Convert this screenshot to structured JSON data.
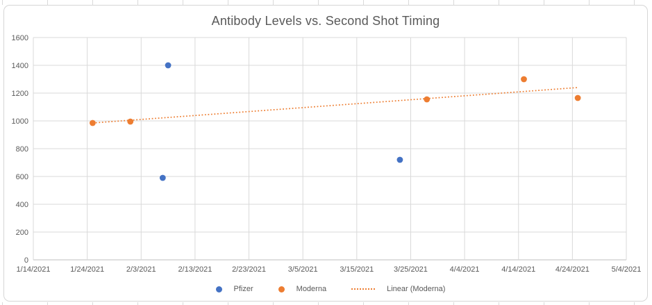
{
  "chart": {
    "title": "Antibody Levels vs. Second Shot Timing",
    "legend": [
      {
        "label": "Pfizer",
        "marker": "dot",
        "color": "#4472c4"
      },
      {
        "label": "Moderna",
        "marker": "dot",
        "color": "#ed7d31"
      },
      {
        "label": "Linear (Moderna)",
        "marker": "dotted-line",
        "color": "#ed7d31"
      }
    ]
  },
  "chart_data": {
    "type": "scatter",
    "title": "Antibody Levels vs. Second Shot Timing",
    "xlabel": "",
    "ylabel": "",
    "grid": true,
    "legend_position": "bottom",
    "x_axis": {
      "start_date": "1/14/2021",
      "end_date": "5/4/2021",
      "tick_interval_days": 10,
      "tick_labels": [
        "1/14/2021",
        "1/24/2021",
        "2/3/2021",
        "2/13/2021",
        "2/23/2021",
        "3/5/2021",
        "3/15/2021",
        "3/25/2021",
        "4/4/2021",
        "4/14/2021",
        "4/24/2021",
        "5/4/2021"
      ]
    },
    "y_axis": {
      "min": 0,
      "max": 1600,
      "tick_step": 200,
      "tick_labels": [
        "0",
        "200",
        "400",
        "600",
        "800",
        "1000",
        "1200",
        "1400",
        "1600"
      ]
    },
    "series": [
      {
        "name": "Pfizer",
        "color": "#4472c4",
        "points": [
          {
            "date": "2/7/2021",
            "value": 590
          },
          {
            "date": "2/8/2021",
            "value": 1400
          },
          {
            "date": "3/23/2021",
            "value": 720
          }
        ]
      },
      {
        "name": "Moderna",
        "color": "#ed7d31",
        "points": [
          {
            "date": "1/25/2021",
            "value": 985
          },
          {
            "date": "2/1/2021",
            "value": 995
          },
          {
            "date": "3/28/2021",
            "value": 1155
          },
          {
            "date": "4/15/2021",
            "value": 1300
          },
          {
            "date": "4/25/2021",
            "value": 1165
          }
        ]
      }
    ],
    "trendline": {
      "name": "Linear (Moderna)",
      "for_series": "Moderna",
      "style": "dotted",
      "color": "#ed7d31",
      "start": {
        "date": "1/25/2021",
        "value": 985
      },
      "end": {
        "date": "4/25/2021",
        "value": 1240
      }
    },
    "colors": {
      "gridline": "#d9d9d9",
      "axis_line": "#bfbfbf",
      "text": "#595959"
    }
  }
}
